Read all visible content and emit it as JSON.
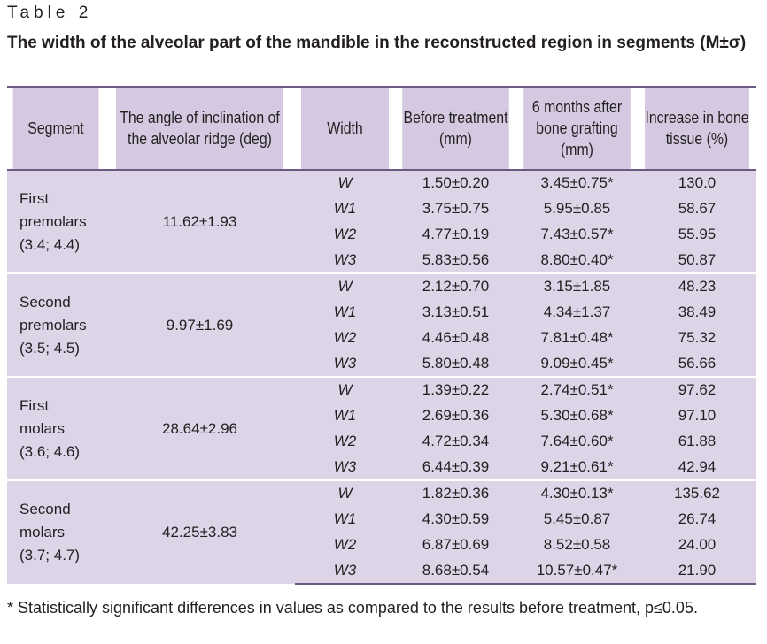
{
  "label": "Table 2",
  "title": "The width of the alveolar part of the mandible in the reconstructed region in segments (M±σ)",
  "columns": [
    "Segment",
    "The angle of inclination of the alveolar ridge (deg)",
    "Width",
    "Before treatment (mm)",
    "6 months after bone grafting (mm)",
    "Increase in bone tissue (%)"
  ],
  "groups": [
    {
      "segment_name": "First premolars",
      "segment_code": "(3.4; 4.4)",
      "angle": "11.62±1.93",
      "rows": [
        {
          "width": "W",
          "before": "1.50±0.20",
          "after": "3.45±0.75*",
          "increase": "130.0"
        },
        {
          "width": "W1",
          "before": "3.75±0.75",
          "after": "5.95±0.85",
          "increase": "58.67"
        },
        {
          "width": "W2",
          "before": "4.77±0.19",
          "after": "7.43±0.57*",
          "increase": "55.95"
        },
        {
          "width": "W3",
          "before": "5.83±0.56",
          "after": "8.80±0.40*",
          "increase": "50.87"
        }
      ]
    },
    {
      "segment_name": "Second premolars",
      "segment_code": "(3.5; 4.5)",
      "angle": "9.97±1.69",
      "rows": [
        {
          "width": "W",
          "before": "2.12±0.70",
          "after": "3.15±1.85",
          "increase": "48.23"
        },
        {
          "width": "W1",
          "before": "3.13±0.51",
          "after": "4.34±1.37",
          "increase": "38.49"
        },
        {
          "width": "W2",
          "before": "4.46±0.48",
          "after": "7.81±0.48*",
          "increase": "75.32"
        },
        {
          "width": "W3",
          "before": "5.80±0.48",
          "after": "9.09±0.45*",
          "increase": "56.66"
        }
      ]
    },
    {
      "segment_name": "First molars",
      "segment_code": "(3.6; 4.6)",
      "angle": "28.64±2.96",
      "rows": [
        {
          "width": "W",
          "before": "1.39±0.22",
          "after": "2.74±0.51*",
          "increase": "97.62"
        },
        {
          "width": "W1",
          "before": "2.69±0.36",
          "after": "5.30±0.68*",
          "increase": "97.10"
        },
        {
          "width": "W2",
          "before": "4.72±0.34",
          "after": "7.64±0.60*",
          "increase": "61.88"
        },
        {
          "width": "W3",
          "before": "6.44±0.39",
          "after": "9.21±0.61*",
          "increase": "42.94"
        }
      ]
    },
    {
      "segment_name": "Second molars",
      "segment_code": "(3.7; 4.7)",
      "angle": "42.25±3.83",
      "rows": [
        {
          "width": "W",
          "before": "1.82±0.36",
          "after": "4.30±0.13*",
          "increase": "135.62"
        },
        {
          "width": "W1",
          "before": "4.30±0.59",
          "after": "5.45±0.87",
          "increase": "26.74"
        },
        {
          "width": "W2",
          "before": "6.87±0.69",
          "after": "8.52±0.58",
          "increase": "24.00"
        },
        {
          "width": "W3",
          "before": "8.68±0.54",
          "after": "10.57±0.47*",
          "increase": "21.90"
        }
      ]
    }
  ],
  "footnote": "* Statistically significant differences in values as compared to the results before treatment, p≤0.05.",
  "colors": {
    "header_bg": "#d4c9e0",
    "body_bg": "#ddd4e8",
    "rule": "#6a5a84"
  }
}
